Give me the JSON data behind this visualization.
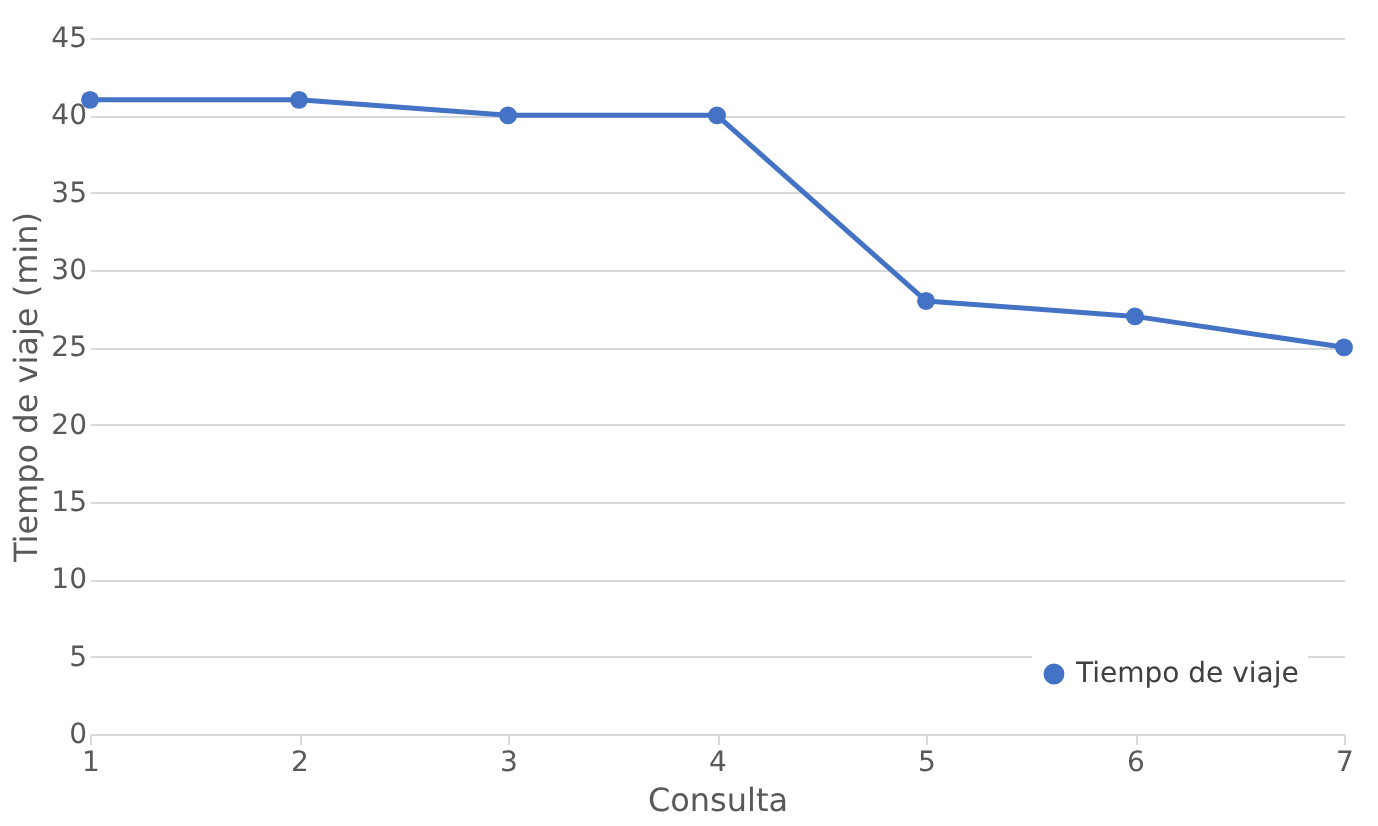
{
  "chart_data": {
    "type": "line",
    "xlabel": "Consulta",
    "ylabel": "Tiempo de viaje (min)",
    "x": [
      1,
      2,
      3,
      4,
      5,
      6,
      7
    ],
    "series": [
      {
        "name": "Tiempo de viaje",
        "color": "#4472c4",
        "values": [
          41,
          41,
          40,
          40,
          28,
          27,
          25
        ]
      }
    ],
    "xlim": [
      1,
      7
    ],
    "xticks": [
      1,
      2,
      3,
      4,
      5,
      6,
      7
    ],
    "ylim": [
      0,
      45
    ],
    "yticks": [
      0,
      5,
      10,
      15,
      20,
      25,
      30,
      35,
      40,
      45
    ],
    "grid": "y",
    "legend": "bottom right",
    "marker": "circle",
    "line_style": "solid"
  }
}
